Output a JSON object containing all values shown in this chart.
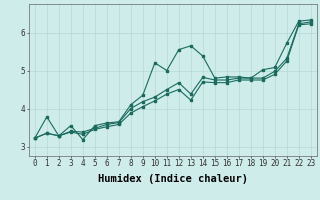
{
  "xlabel": "Humidex (Indice chaleur)",
  "ylabel": "",
  "bg_color": "#ceecea",
  "line_color": "#1a6b5e",
  "grid_color": "#b8d8d4",
  "xlim": [
    -0.5,
    23.5
  ],
  "ylim": [
    2.75,
    6.75
  ],
  "yticks": [
    3,
    4,
    5,
    6
  ],
  "xticks": [
    0,
    1,
    2,
    3,
    4,
    5,
    6,
    7,
    8,
    9,
    10,
    11,
    12,
    13,
    14,
    15,
    16,
    17,
    18,
    19,
    20,
    21,
    22,
    23
  ],
  "line1_x": [
    0,
    1,
    2,
    3,
    4,
    5,
    6,
    7,
    8,
    9,
    10,
    11,
    12,
    13,
    14,
    15,
    16,
    17,
    18,
    19,
    20,
    21,
    22,
    23
  ],
  "line1_y": [
    3.22,
    3.78,
    3.28,
    3.55,
    3.18,
    3.55,
    3.62,
    3.65,
    4.1,
    4.35,
    5.2,
    5.0,
    5.55,
    5.65,
    5.38,
    4.8,
    4.83,
    4.83,
    4.8,
    5.02,
    5.08,
    5.72,
    6.3,
    6.33
  ],
  "line2_x": [
    0,
    1,
    2,
    3,
    4,
    5,
    6,
    7,
    8,
    9,
    10,
    11,
    12,
    13,
    14,
    15,
    16,
    17,
    18,
    19,
    20,
    21,
    22,
    23
  ],
  "line2_y": [
    3.22,
    3.35,
    3.28,
    3.4,
    3.38,
    3.48,
    3.58,
    3.63,
    4.0,
    4.18,
    4.3,
    4.5,
    4.68,
    4.38,
    4.82,
    4.75,
    4.75,
    4.8,
    4.8,
    4.8,
    4.98,
    5.32,
    6.23,
    6.28
  ],
  "line3_x": [
    0,
    1,
    2,
    3,
    4,
    5,
    6,
    7,
    8,
    9,
    10,
    11,
    12,
    13,
    14,
    15,
    16,
    17,
    18,
    19,
    20,
    21,
    22,
    23
  ],
  "line3_y": [
    3.22,
    3.35,
    3.28,
    3.38,
    3.32,
    3.45,
    3.52,
    3.58,
    3.88,
    4.05,
    4.2,
    4.38,
    4.5,
    4.22,
    4.7,
    4.68,
    4.68,
    4.75,
    4.75,
    4.75,
    4.9,
    5.25,
    6.2,
    6.23
  ],
  "tick_fontsize": 5.5,
  "label_fontsize": 7.5,
  "figwidth": 3.2,
  "figheight": 2.0,
  "dpi": 100
}
